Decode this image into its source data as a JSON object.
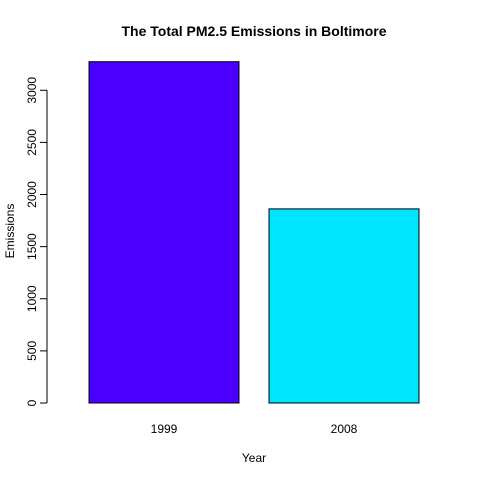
{
  "chart_data": {
    "type": "bar",
    "title": "The Total PM2.5 Emissions in Boltimore",
    "xlabel": "Year",
    "ylabel": "Emissions",
    "categories": [
      "1999",
      "2008"
    ],
    "values": [
      3274,
      1862
    ],
    "colors": [
      "#4B00FF",
      "#00E5FF"
    ],
    "ylim": [
      0,
      3300
    ],
    "yticks": [
      0,
      500,
      1000,
      1500,
      2000,
      2500,
      3000
    ],
    "ytick_labels": [
      "0",
      "500",
      "1000",
      "1500",
      "2000",
      "2500",
      "3000"
    ],
    "grid": false,
    "legend": "none"
  }
}
